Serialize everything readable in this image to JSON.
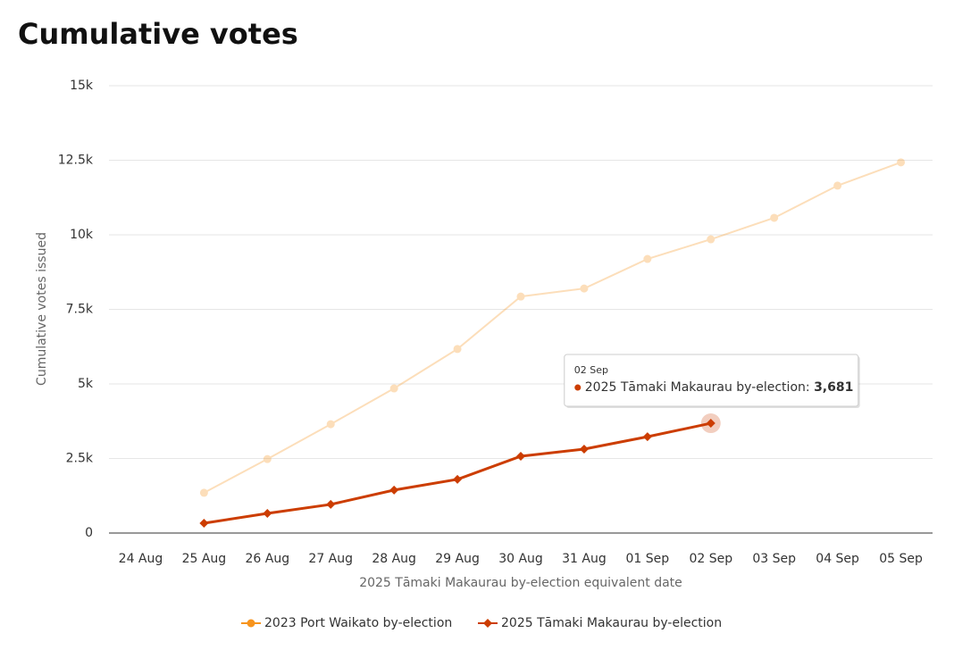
{
  "chart_data": {
    "type": "line",
    "title": "Cumulative votes",
    "x_label": "2025 Tāmaki Makaurau by-election equivalent date",
    "y_label": "Cumulative votes issued",
    "categories": [
      "24 Aug",
      "25 Aug",
      "26 Aug",
      "27 Aug",
      "28 Aug",
      "29 Aug",
      "30 Aug",
      "31 Aug",
      "01 Sep",
      "02 Sep",
      "03 Sep",
      "04 Sep",
      "05 Sep"
    ],
    "series": [
      {
        "name": "2023 Port Waikato by-election",
        "color": "#f7941d",
        "marker": "circle",
        "values": [
          null,
          1350,
          2480,
          3650,
          4850,
          6170,
          7930,
          8200,
          9190,
          9850,
          10570,
          11650,
          12430
        ]
      },
      {
        "name": "2025 Tāmaki Makaurau by-election",
        "color": "#cc3d00",
        "marker": "diamond",
        "values": [
          null,
          330,
          660,
          960,
          1440,
          1800,
          2575,
          2815,
          3230,
          3681,
          null,
          null,
          null
        ]
      }
    ],
    "ylim": [
      0,
      15000
    ],
    "yticks": [
      0,
      {
        "value": 2500,
        "label": "2.5k"
      },
      {
        "value": 5000,
        "label": "5k"
      },
      {
        "value": 7500,
        "label": "7.5k"
      },
      {
        "value": 10000,
        "label": "10k"
      },
      {
        "value": 12500,
        "label": "12.5k"
      },
      {
        "value": 15000,
        "label": "15k"
      }
    ],
    "grid": true,
    "legend": "bottom",
    "tooltip": {
      "title": "02 Sep",
      "label": "2025 Tāmaki Makaurau by-election:",
      "value": "3,681",
      "series": 1,
      "index": 9
    }
  }
}
